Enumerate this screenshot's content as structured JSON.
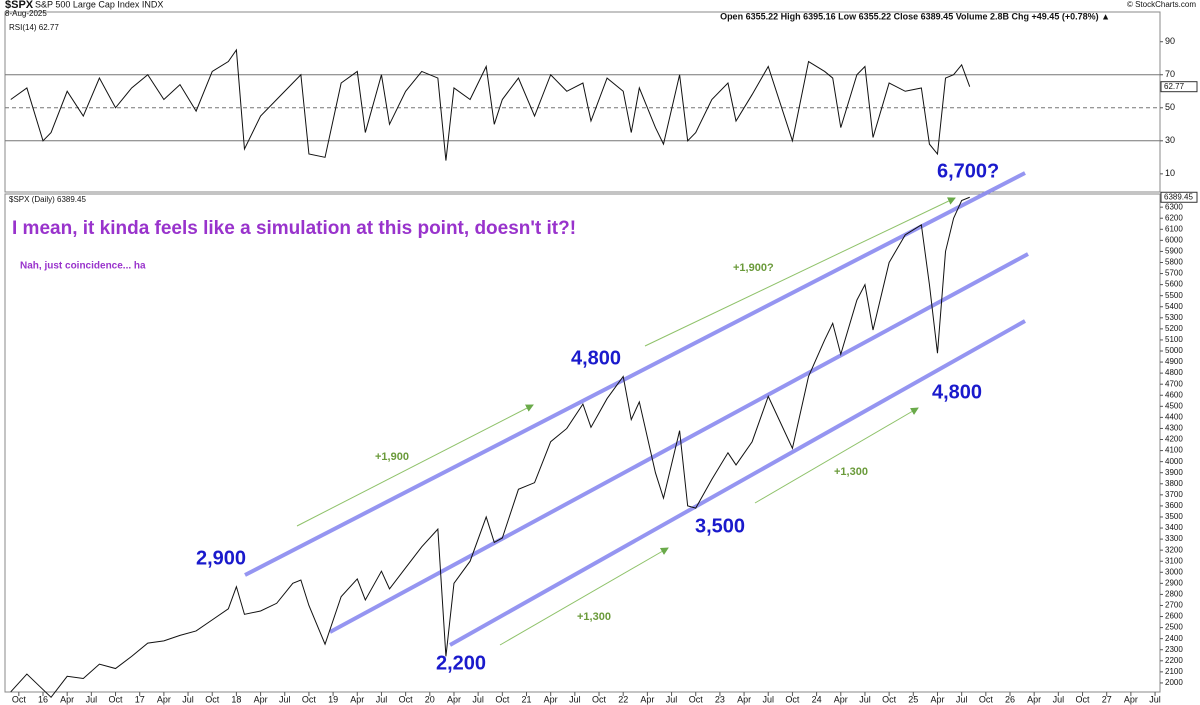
{
  "header": {
    "symbol": "$SPX",
    "name": "S&P 500 Large Cap Index INDX",
    "date": "8-Aug-2025",
    "quote": "Open 6355.22  High 6395.16  Low 6355.22  Close 6389.45  Volume 2.8B  Chg +49.45 (+0.78%) ▲",
    "credit": "© StockCharts.com"
  },
  "annotations": {
    "headline": "I mean, it kinda feels like a simulation at this point, doesn't it?!",
    "subtext": "Nah, just coincidence... ha",
    "levels": [
      "2,900",
      "2,200",
      "4,800",
      "3,500",
      "4,800",
      "6,700?"
    ],
    "moves": [
      "+1,900",
      "+1,300",
      "+1,900?",
      "+1,300"
    ]
  },
  "chart_data": [
    {
      "type": "line",
      "title": "RSI(14) 62.77",
      "last_label": "62.77",
      "ylim": [
        -1,
        108
      ],
      "yticks": [
        10,
        30,
        50,
        70,
        90
      ],
      "reference_lines": [
        30,
        50,
        70
      ],
      "x": [
        "2015-09",
        "2015-11",
        "2016-01",
        "2016-02",
        "2016-04",
        "2016-06",
        "2016-08",
        "2016-10",
        "2016-12",
        "2017-02",
        "2017-04",
        "2017-06",
        "2017-08",
        "2017-10",
        "2017-12",
        "2018-01",
        "2018-02",
        "2018-04",
        "2018-06",
        "2018-08",
        "2018-09",
        "2018-10",
        "2018-12",
        "2019-02",
        "2019-04",
        "2019-05",
        "2019-07",
        "2019-08",
        "2019-10",
        "2019-12",
        "2020-02",
        "2020-03",
        "2020-04",
        "2020-06",
        "2020-08",
        "2020-09",
        "2020-10",
        "2020-12",
        "2021-02",
        "2021-04",
        "2021-06",
        "2021-08",
        "2021-09",
        "2021-11",
        "2022-01",
        "2022-02",
        "2022-03",
        "2022-05",
        "2022-06",
        "2022-08",
        "2022-09",
        "2022-10",
        "2022-12",
        "2023-02",
        "2023-03",
        "2023-05",
        "2023-07",
        "2023-10",
        "2023-12",
        "2024-02",
        "2024-03",
        "2024-04",
        "2024-06",
        "2024-07",
        "2024-08",
        "2024-10",
        "2024-12",
        "2025-02",
        "2025-03",
        "2025-04",
        "2025-05",
        "2025-06",
        "2025-07",
        "2025-08"
      ],
      "series": [
        {
          "name": "RSI(14)",
          "color": "#111111",
          "values": [
            55,
            62,
            30,
            35,
            60,
            45,
            68,
            50,
            62,
            70,
            55,
            64,
            48,
            72,
            78,
            85,
            25,
            45,
            55,
            65,
            70,
            22,
            20,
            65,
            72,
            35,
            70,
            40,
            60,
            72,
            68,
            18,
            62,
            55,
            75,
            40,
            55,
            68,
            45,
            70,
            60,
            65,
            42,
            68,
            60,
            35,
            62,
            38,
            28,
            70,
            30,
            35,
            55,
            65,
            42,
            58,
            75,
            30,
            78,
            72,
            68,
            38,
            70,
            75,
            32,
            65,
            60,
            62,
            28,
            22,
            68,
            70,
            76,
            62.77
          ]
        }
      ]
    },
    {
      "type": "line",
      "title": "$SPX (Daily) 6389.45",
      "last_label": "6389.45",
      "ylim": [
        1918,
        6419
      ],
      "yticks": [
        2000,
        2100,
        2200,
        2300,
        2400,
        2500,
        2600,
        2700,
        2800,
        2900,
        3000,
        3100,
        3200,
        3300,
        3400,
        3500,
        3600,
        3700,
        3800,
        3900,
        4000,
        4100,
        4200,
        4300,
        4400,
        4500,
        4600,
        4700,
        4800,
        4900,
        5000,
        5100,
        5200,
        5300,
        5400,
        5500,
        5600,
        5700,
        5800,
        5900,
        6000,
        6100,
        6200,
        6300
      ],
      "xticks": [
        {
          "value": "2015-10",
          "label": "Oct"
        },
        {
          "value": "2016-01",
          "label": "16"
        },
        {
          "value": "2016-04",
          "label": "Apr"
        },
        {
          "value": "2016-07",
          "label": "Jul"
        },
        {
          "value": "2016-10",
          "label": "Oct"
        },
        {
          "value": "2017-01",
          "label": "17"
        },
        {
          "value": "2017-04",
          "label": "Apr"
        },
        {
          "value": "2017-07",
          "label": "Jul"
        },
        {
          "value": "2017-10",
          "label": "Oct"
        },
        {
          "value": "2018-01",
          "label": "18"
        },
        {
          "value": "2018-04",
          "label": "Apr"
        },
        {
          "value": "2018-07",
          "label": "Jul"
        },
        {
          "value": "2018-10",
          "label": "Oct"
        },
        {
          "value": "2019-01",
          "label": "19"
        },
        {
          "value": "2019-04",
          "label": "Apr"
        },
        {
          "value": "2019-07",
          "label": "Jul"
        },
        {
          "value": "2019-10",
          "label": "Oct"
        },
        {
          "value": "2020-01",
          "label": "20"
        },
        {
          "value": "2020-04",
          "label": "Apr"
        },
        {
          "value": "2020-07",
          "label": "Jul"
        },
        {
          "value": "2020-10",
          "label": "Oct"
        },
        {
          "value": "2021-01",
          "label": "21"
        },
        {
          "value": "2021-04",
          "label": "Apr"
        },
        {
          "value": "2021-07",
          "label": "Jul"
        },
        {
          "value": "2021-10",
          "label": "Oct"
        },
        {
          "value": "2022-01",
          "label": "22"
        },
        {
          "value": "2022-04",
          "label": "Apr"
        },
        {
          "value": "2022-07",
          "label": "Jul"
        },
        {
          "value": "2022-10",
          "label": "Oct"
        },
        {
          "value": "2023-01",
          "label": "23"
        },
        {
          "value": "2023-04",
          "label": "Apr"
        },
        {
          "value": "2023-07",
          "label": "Jul"
        },
        {
          "value": "2023-10",
          "label": "Oct"
        },
        {
          "value": "2024-01",
          "label": "24"
        },
        {
          "value": "2024-04",
          "label": "Apr"
        },
        {
          "value": "2024-07",
          "label": "Jul"
        },
        {
          "value": "2024-10",
          "label": "Oct"
        },
        {
          "value": "2025-01",
          "label": "25"
        },
        {
          "value": "2025-04",
          "label": "Apr"
        },
        {
          "value": "2025-07",
          "label": "Jul"
        },
        {
          "value": "2025-10",
          "label": "Oct"
        },
        {
          "value": "2026-01",
          "label": "26"
        },
        {
          "value": "2026-04",
          "label": "Apr"
        },
        {
          "value": "2026-07",
          "label": "Jul"
        },
        {
          "value": "2026-10",
          "label": "Oct"
        },
        {
          "value": "2027-01",
          "label": "27"
        },
        {
          "value": "2027-04",
          "label": "Apr"
        },
        {
          "value": "2027-07",
          "label": "Jul"
        }
      ],
      "x": [
        "2015-09",
        "2015-11",
        "2016-01",
        "2016-02",
        "2016-04",
        "2016-06",
        "2016-08",
        "2016-10",
        "2016-12",
        "2017-02",
        "2017-04",
        "2017-06",
        "2017-08",
        "2017-10",
        "2017-12",
        "2018-01",
        "2018-02",
        "2018-04",
        "2018-06",
        "2018-08",
        "2018-09",
        "2018-10",
        "2018-12",
        "2019-02",
        "2019-04",
        "2019-05",
        "2019-07",
        "2019-08",
        "2019-10",
        "2019-12",
        "2020-02",
        "2020-03",
        "2020-04",
        "2020-06",
        "2020-08",
        "2020-09",
        "2020-10",
        "2020-12",
        "2021-02",
        "2021-04",
        "2021-06",
        "2021-08",
        "2021-09",
        "2021-11",
        "2022-01",
        "2022-02",
        "2022-03",
        "2022-05",
        "2022-06",
        "2022-08",
        "2022-09",
        "2022-10",
        "2022-12",
        "2023-02",
        "2023-03",
        "2023-05",
        "2023-07",
        "2023-10",
        "2023-12",
        "2024-02",
        "2024-03",
        "2024-04",
        "2024-06",
        "2024-07",
        "2024-08",
        "2024-10",
        "2024-12",
        "2025-02",
        "2025-03",
        "2025-04",
        "2025-05",
        "2025-06",
        "2025-07",
        "2025-08"
      ],
      "series": [
        {
          "name": "$SPX",
          "color": "#111111",
          "values": [
            1920,
            2080,
            1940,
            1870,
            2060,
            2040,
            2170,
            2130,
            2240,
            2360,
            2380,
            2430,
            2470,
            2570,
            2670,
            2870,
            2620,
            2650,
            2720,
            2900,
            2930,
            2700,
            2350,
            2780,
            2940,
            2750,
            3010,
            2850,
            3040,
            3230,
            3390,
            2240,
            2900,
            3100,
            3500,
            3270,
            3310,
            3750,
            3810,
            4180,
            4300,
            4520,
            4310,
            4570,
            4770,
            4380,
            4540,
            3900,
            3670,
            4280,
            3600,
            3580,
            3840,
            4080,
            3970,
            4180,
            4590,
            4120,
            4770,
            5100,
            5250,
            4970,
            5460,
            5600,
            5190,
            5800,
            6050,
            6140,
            5600,
            4980,
            5900,
            6200,
            6360,
            6389.45
          ]
        }
      ]
    }
  ]
}
